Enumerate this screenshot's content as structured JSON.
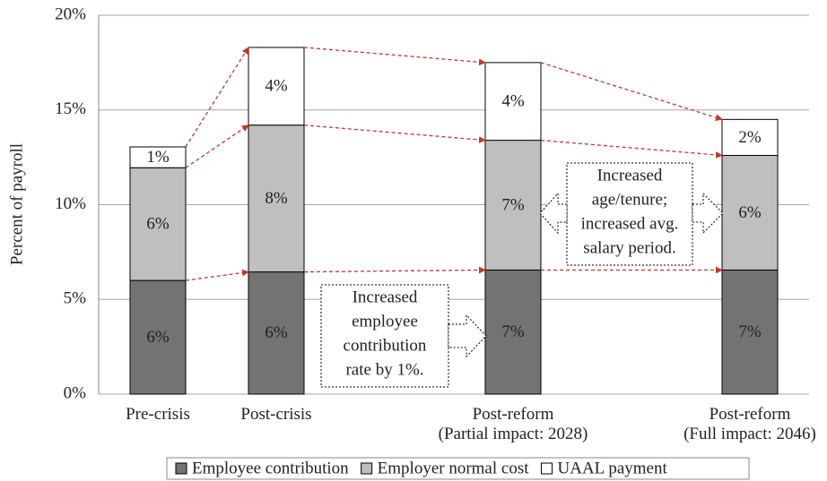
{
  "chart_data": {
    "type": "stacked_bar",
    "y_label": "Percent of payroll",
    "categories": [
      "Pre-crisis",
      "Post-crisis",
      null,
      "Post-reform\n(Partial impact: 2028)",
      null,
      "Post-reform\n(Full impact: 2046)"
    ],
    "series": [
      {
        "name": "Employee contribution",
        "color": "#737373",
        "values": [
          6.0,
          6.45,
          null,
          6.55,
          null,
          6.55
        ],
        "value_labels": [
          "6%",
          "6%",
          null,
          "7%",
          null,
          "7%"
        ]
      },
      {
        "name": "Employer normal cost",
        "color": "#bfbfbf",
        "values": [
          5.95,
          7.75,
          null,
          6.85,
          null,
          6.05
        ],
        "value_labels": [
          "6%",
          "8%",
          null,
          "7%",
          null,
          "6%"
        ]
      },
      {
        "name": "UAAL payment",
        "color": "#ffffff",
        "values": [
          1.1,
          4.1,
          null,
          4.1,
          null,
          1.9
        ],
        "value_labels": [
          "1%",
          "4%",
          null,
          "4%",
          null,
          "2%"
        ]
      }
    ],
    "ylim": [
      0,
      20
    ],
    "yticks": [
      {
        "value": 0,
        "label": "0%"
      },
      {
        "value": 5,
        "label": "5%"
      },
      {
        "value": 10,
        "label": "10%"
      },
      {
        "value": 15,
        "label": "15%"
      },
      {
        "value": 20,
        "label": "20%"
      }
    ],
    "grid": true,
    "legend": "bottom",
    "annotations": [
      {
        "lines": [
          "Increased",
          "employee",
          "contribution",
          "rate by 1%."
        ]
      },
      {
        "lines": [
          "Increased",
          "age/tenure;",
          "increased avg.",
          "salary period."
        ]
      }
    ]
  }
}
